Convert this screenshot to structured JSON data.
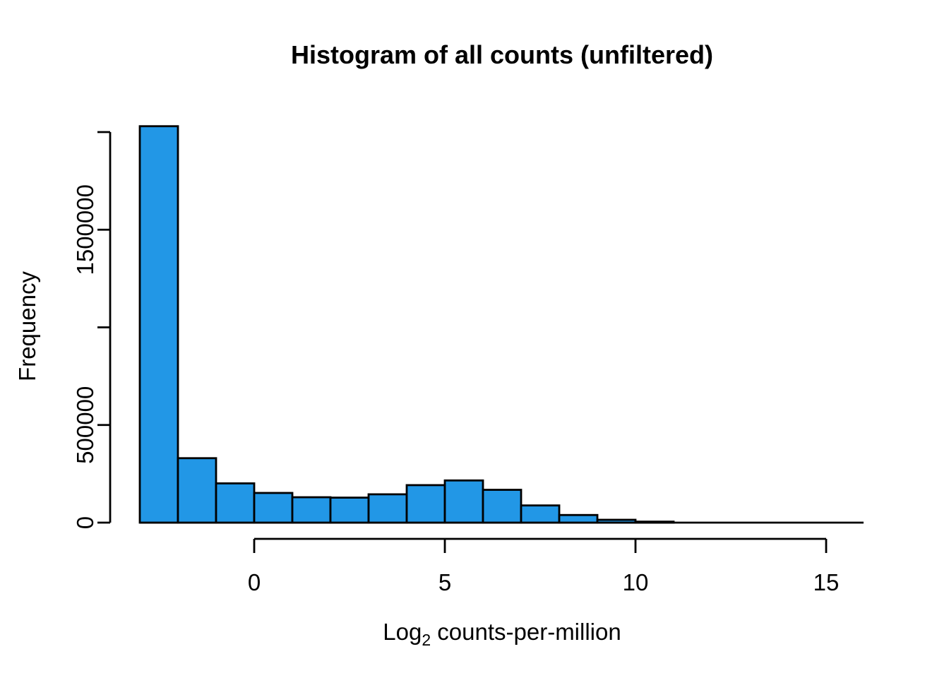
{
  "title": "Histogram of all counts (unfiltered)",
  "x_axis": {
    "label_prefix": "Log",
    "label_sub": "2",
    "label_suffix": " counts-per-million",
    "ticks": [
      {
        "value": 0,
        "label": "0"
      },
      {
        "value": 5,
        "label": "5"
      },
      {
        "value": 10,
        "label": "10"
      },
      {
        "value": 15,
        "label": "15"
      }
    ]
  },
  "y_axis": {
    "label": "Frequency",
    "ticks": [
      {
        "value": 0,
        "label": "0"
      },
      {
        "value": 500000,
        "label": "500000"
      },
      {
        "value": 1000000,
        "label": ""
      },
      {
        "value": 1500000,
        "label": "1500000"
      },
      {
        "value": 2000000,
        "label": ""
      }
    ]
  },
  "colors": {
    "bar_fill": "#2297E6",
    "bar_border": "#000000",
    "axis": "#000000",
    "text": "#000000",
    "background": "#FFFFFF"
  },
  "chart_data": {
    "type": "bar",
    "subtype": "histogram",
    "title": "Histogram of all counts (unfiltered)",
    "xlabel": "Log2 counts-per-million",
    "ylabel": "Frequency",
    "bin_width": 1,
    "bin_starts": [
      -3,
      -2,
      -1,
      0,
      1,
      2,
      3,
      4,
      5,
      6,
      7,
      8,
      9,
      10,
      11,
      12,
      13,
      14,
      15
    ],
    "values": [
      2030000,
      330000,
      201000,
      152000,
      130000,
      128000,
      145000,
      192000,
      216000,
      168000,
      88000,
      39000,
      14500,
      5000,
      0,
      0,
      0,
      0,
      0
    ],
    "x_ticks": [
      0,
      5,
      10,
      15
    ],
    "y_ticks": [
      0,
      500000,
      1000000,
      1500000,
      2000000
    ],
    "xlim": [
      -3.8,
      16.8
    ],
    "ylim": [
      0,
      2030000
    ],
    "grid": false,
    "legend": null
  }
}
